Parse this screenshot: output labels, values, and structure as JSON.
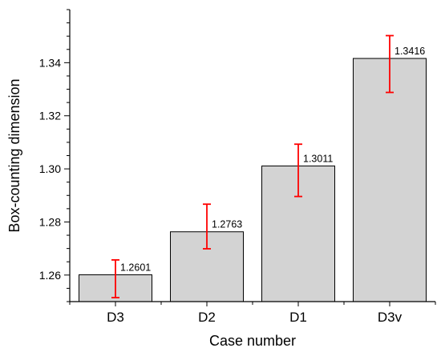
{
  "chart_data": {
    "type": "bar",
    "categories": [
      "D3",
      "D2",
      "D1",
      "D3v"
    ],
    "values": [
      1.2601,
      1.2763,
      1.3011,
      1.3416
    ],
    "error_bars": {
      "lower": [
        1.2515,
        1.2699,
        1.2896,
        1.3288
      ],
      "upper": [
        1.2657,
        1.2867,
        1.3093,
        1.3502
      ]
    },
    "data_labels": [
      "1.2601",
      "1.2763",
      "1.3011",
      "1.3416"
    ],
    "yticks": [
      1.26,
      1.28,
      1.3,
      1.32,
      1.34
    ],
    "ytick_labels": [
      "1.26",
      "1.28",
      "1.30",
      "1.32",
      "1.34"
    ],
    "xlabel": "Case number",
    "ylabel": "Box-counting dimension",
    "ylim": [
      1.25,
      1.36
    ],
    "grid": false,
    "legend": "none",
    "colors": {
      "bar_fill": "#d3d3d3",
      "bar_stroke": "#000000",
      "error_bar": "#ff0000"
    }
  }
}
